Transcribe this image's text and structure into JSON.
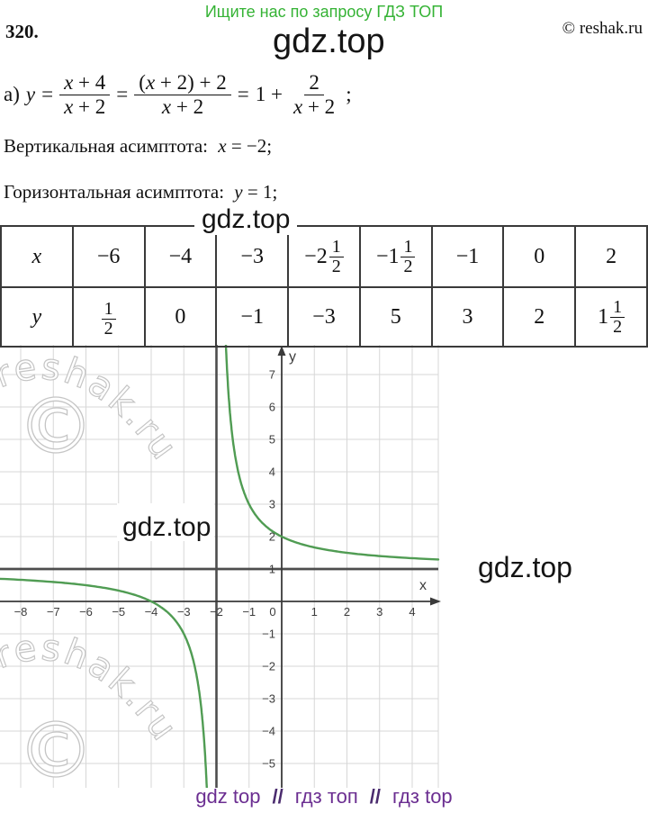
{
  "header": {
    "promo": "Ищите нас по запросу ГДЗ ТОП",
    "promo_color": "#35b335",
    "problem_number": "320.",
    "watermark": "gdz.top",
    "copyright": "© reshak.ru"
  },
  "solution": {
    "formula": {
      "prefix": "а)",
      "lhs": "y",
      "eq": "=",
      "frac1": {
        "num": "x + 4",
        "den": "x + 2"
      },
      "frac2": {
        "num": "(x + 2) + 2",
        "den": "x + 2"
      },
      "one_plus": "1 +",
      "frac3": {
        "num": "2",
        "den": "x + 2"
      },
      "semicolon": ";"
    },
    "vertical_asymptote": {
      "label": "Вертикальная асимптота:",
      "math": "x = −2;"
    },
    "horizontal_asymptote": {
      "label": "Горизонтальная асимптота:",
      "math": "y = 1;"
    }
  },
  "mid_watermark": "gdz.top",
  "table": {
    "x_row": [
      {
        "t": "x"
      },
      {
        "t": "−6"
      },
      {
        "t": "−4"
      },
      {
        "t": "−3"
      },
      {
        "w": "−2",
        "n": "1",
        "d": "2"
      },
      {
        "w": "−1",
        "n": "1",
        "d": "2"
      },
      {
        "t": "−1"
      },
      {
        "t": "0"
      },
      {
        "t": "2"
      }
    ],
    "y_row": [
      {
        "t": "y"
      },
      {
        "n": "1",
        "d": "2"
      },
      {
        "t": "0"
      },
      {
        "t": "−1"
      },
      {
        "t": "−3"
      },
      {
        "t": "5"
      },
      {
        "t": "3"
      },
      {
        "t": "2"
      },
      {
        "w": "1",
        "n": "1",
        "d": "2"
      }
    ]
  },
  "chart_data": {
    "type": "line",
    "function": "y = 1 + 2/(x + 2)",
    "hyperbola": {
      "a": 2,
      "b": -2,
      "c": 1
    },
    "xlabel": "x",
    "ylabel": "y",
    "xlim": [
      -8.63,
      4.8
    ],
    "ylim": [
      -5.75,
      7.92
    ],
    "x_ticks": [
      -8,
      -7,
      -6,
      -5,
      -4,
      -3,
      -2,
      -1,
      0,
      1,
      2,
      3,
      4
    ],
    "y_ticks": [
      -5,
      -4,
      -3,
      -2,
      -1,
      1,
      2,
      3,
      4,
      5,
      6,
      7
    ],
    "grid": true,
    "vertical_asymptote": -2,
    "horizontal_asymptote": 1,
    "points": [
      [
        -6,
        0.5
      ],
      [
        -4,
        0
      ],
      [
        -3,
        -1
      ],
      [
        -2.5,
        -3
      ],
      [
        -1.5,
        5
      ],
      [
        -1,
        3
      ],
      [
        0,
        2
      ],
      [
        2,
        1.5
      ]
    ],
    "curve_color": "#509c53",
    "axis_color": "#3a3a3a",
    "grid_color": "#d7d7d7",
    "asymptote_color": "#4d4d4d",
    "tick_color": "#3d3d3d"
  },
  "graph_watermarks": {
    "reshak": "reshak.ru",
    "copyright_symbol": "©",
    "gdz_inner": "gdz.top",
    "gdz_right": "gdz.top"
  },
  "footer": {
    "links": [
      {
        "label": "gdz top"
      },
      {
        "label": "гдз топ"
      },
      {
        "label": "гдз top"
      }
    ],
    "separator": "//"
  }
}
